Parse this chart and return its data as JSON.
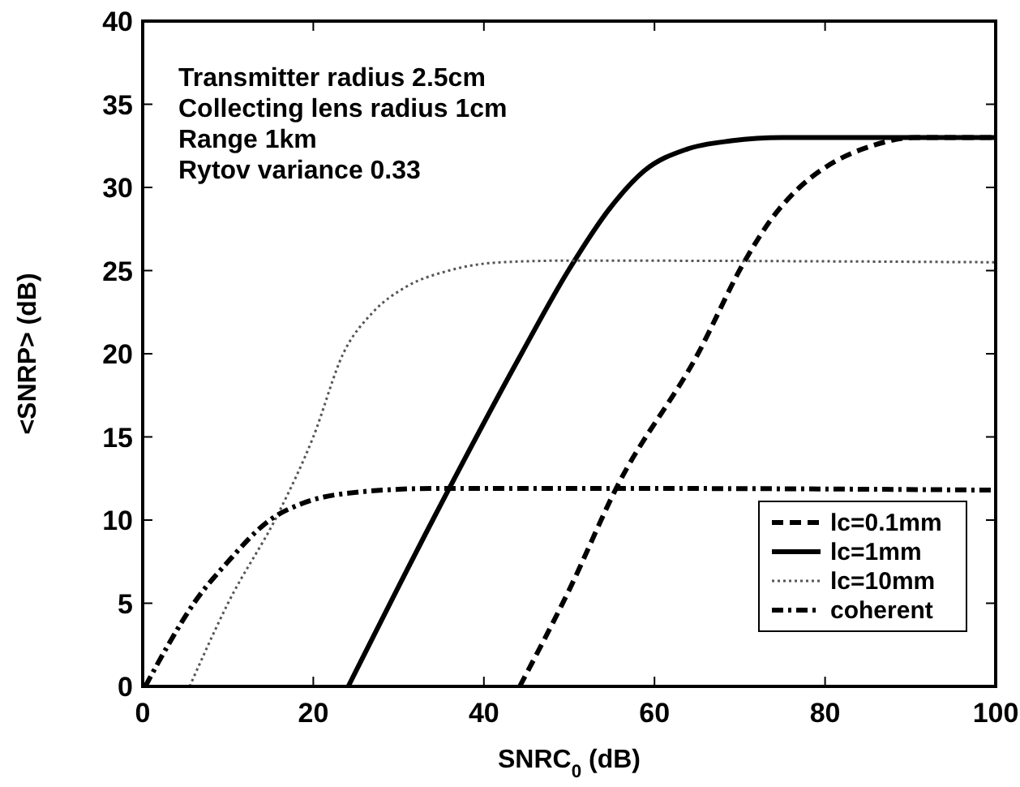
{
  "chart_data": {
    "type": "line",
    "xlabel": "SNRC$_{0}$ (dB)",
    "ylabel": "<SNRP> (dB)",
    "annotations": [
      "Transmitter radius 2.5cm",
      "Collecting lens radius 1cm",
      "Range 1km",
      "Rytov variance 0.33"
    ],
    "xlim": [
      0,
      100
    ],
    "xticks": [
      0,
      20,
      40,
      60,
      80,
      100
    ],
    "ylim": [
      0,
      40
    ],
    "yticks": [
      0,
      5,
      10,
      15,
      20,
      25,
      30,
      35,
      40
    ],
    "legend": "bottom right",
    "series": [
      {
        "name": "lc=0.1mm",
        "color": "#000000",
        "line_style": "dashed",
        "x": [
          44.2,
          50,
          55.6,
          65.1,
          70.5,
          74,
          77,
          80,
          85.5,
          90.5,
          100
        ],
        "values": [
          0,
          5.8,
          12,
          20,
          25.5,
          28.3,
          30,
          31.2,
          32.5,
          33,
          33
        ]
      },
      {
        "name": "lc=1mm",
        "color": "#000000",
        "line_style": "solid",
        "x": [
          24.1,
          34,
          44.4,
          49.9,
          55,
          58.8,
          63.8,
          69,
          75,
          100
        ],
        "values": [
          0,
          10,
          20,
          25,
          28.9,
          31,
          32.3,
          32.8,
          33,
          33
        ]
      },
      {
        "name": "lc=10mm",
        "color": "#555555",
        "line_style": "dotted",
        "x": [
          5.5,
          10,
          16,
          20,
          23.5,
          27,
          30.8,
          35.9,
          42,
          50,
          100
        ],
        "values": [
          0,
          5,
          10.5,
          15,
          20,
          22.5,
          24,
          25,
          25.5,
          25.6,
          25.5
        ]
      },
      {
        "name": "coherent",
        "color": "#000000",
        "line_style": "dashdot",
        "x": [
          0.3,
          3,
          6,
          10,
          14.9,
          18.7,
          23.8,
          34,
          60,
          100
        ],
        "values": [
          0,
          2.5,
          5,
          7.5,
          10,
          11,
          11.6,
          11.9,
          11.9,
          11.8
        ]
      }
    ]
  }
}
